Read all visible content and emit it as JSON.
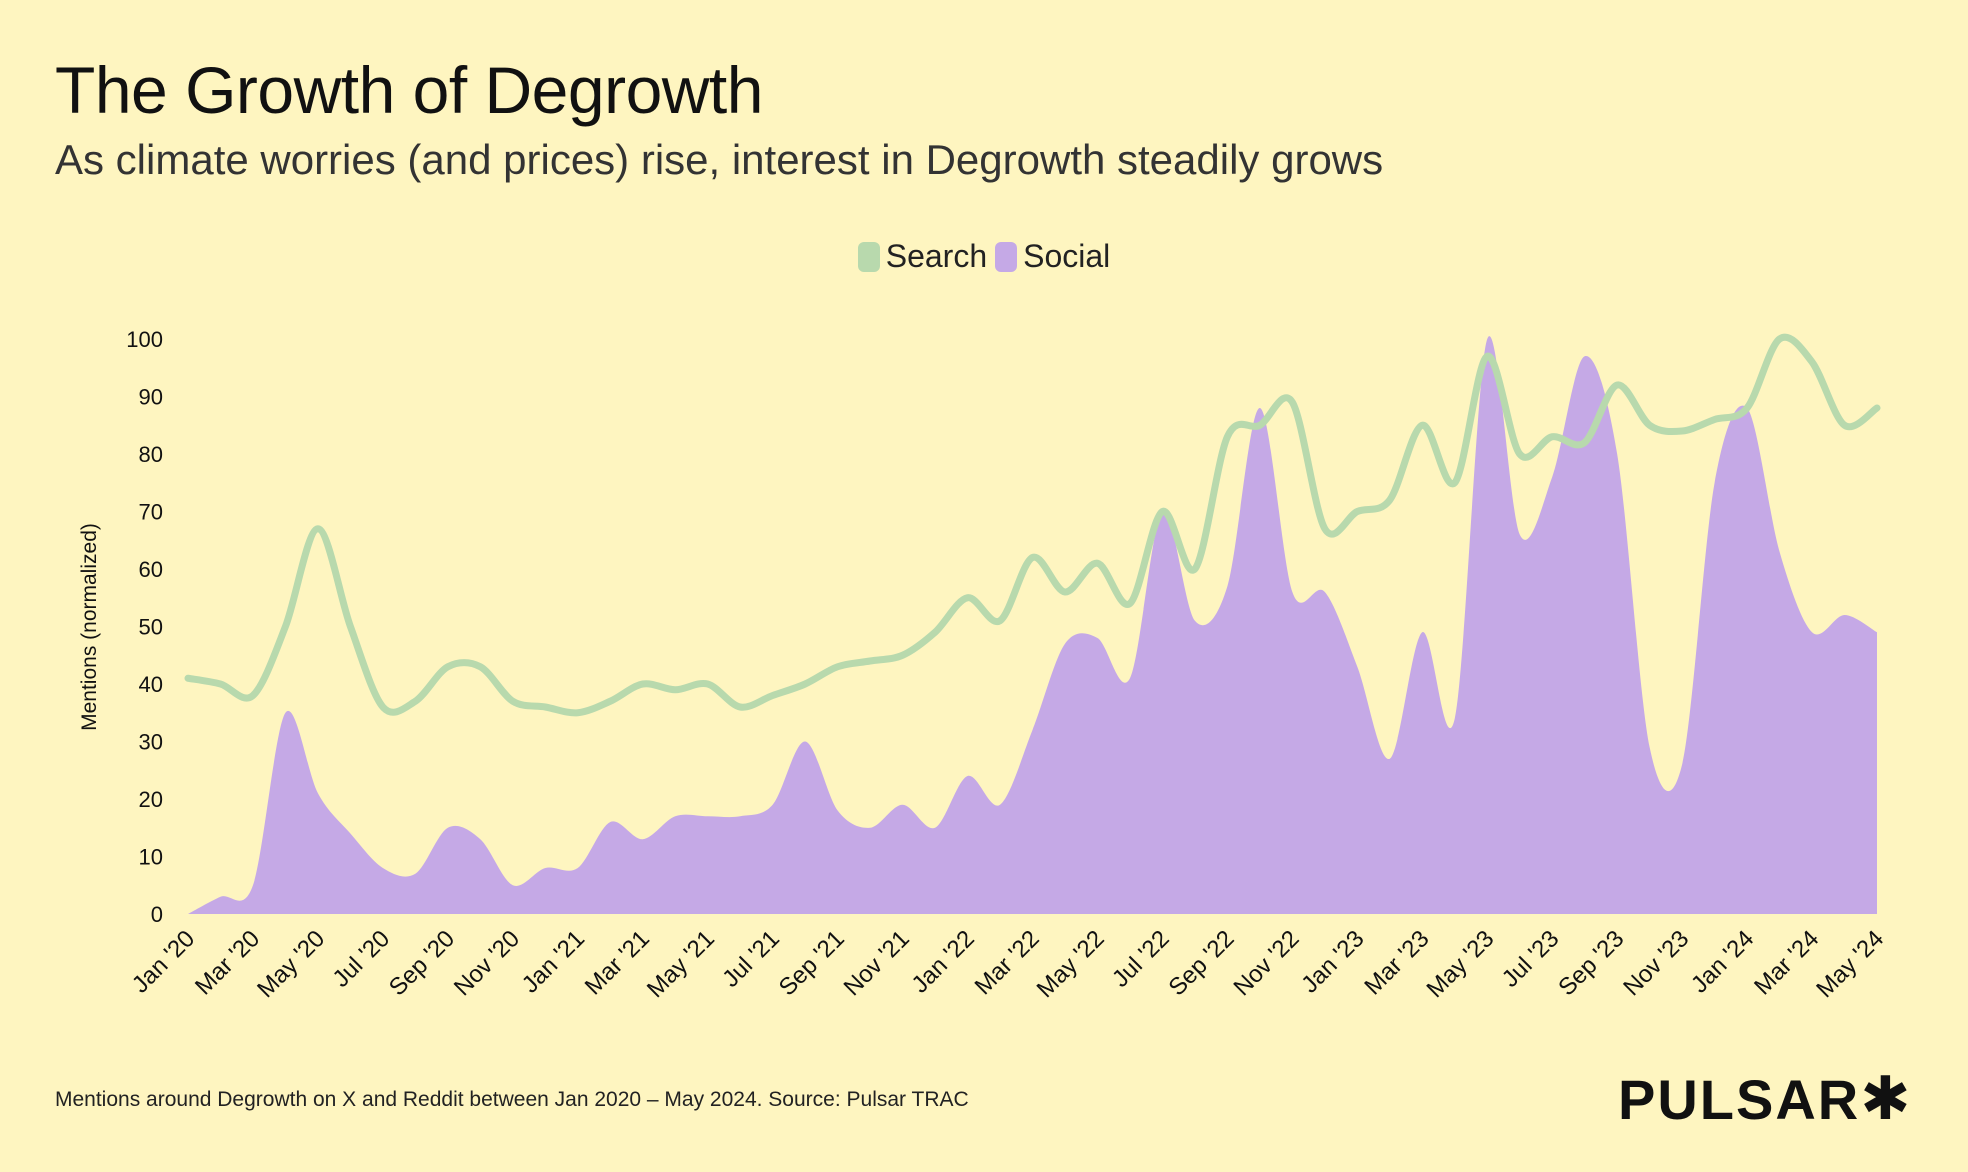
{
  "title": "The Growth of Degrowth",
  "subtitle": "As climate worries (and prices) rise, interest in Degrowth steadily grows",
  "footer": "Mentions around Degrowth on X and Reddit between Jan 2020 – May 2024. Source: Pulsar TRAC",
  "logo": "PULSAR✱",
  "chart_data": {
    "type": "area+line",
    "ylabel": "Mentions (normalized)",
    "ylim": [
      0,
      100
    ],
    "yticks": [
      0,
      10,
      20,
      30,
      40,
      50,
      60,
      70,
      80,
      90,
      100
    ],
    "legend_placement": "top-center",
    "grid": false,
    "xtick_labels": [
      "Jan '20",
      "Mar '20",
      "May '20",
      "Jul '20",
      "Sep '20",
      "Nov '20",
      "Jan '21",
      "Mar '21",
      "May '21",
      "Jul '21",
      "Sep '21",
      "Nov '21",
      "Jan '22",
      "Mar '22",
      "May '22",
      "Jul '22",
      "Sep '22",
      "Nov '22",
      "Jan '23",
      "Mar '23",
      "May '23",
      "Jul '23",
      "Sep '23",
      "Nov '23",
      "Jan '24",
      "Mar '24",
      "May '24"
    ],
    "x": [
      "2020-01",
      "2020-02",
      "2020-03",
      "2020-04",
      "2020-05",
      "2020-06",
      "2020-07",
      "2020-08",
      "2020-09",
      "2020-10",
      "2020-11",
      "2020-12",
      "2021-01",
      "2021-02",
      "2021-03",
      "2021-04",
      "2021-05",
      "2021-06",
      "2021-07",
      "2021-08",
      "2021-09",
      "2021-10",
      "2021-11",
      "2021-12",
      "2022-01",
      "2022-02",
      "2022-03",
      "2022-04",
      "2022-05",
      "2022-06",
      "2022-07",
      "2022-08",
      "2022-09",
      "2022-10",
      "2022-11",
      "2022-12",
      "2023-01",
      "2023-02",
      "2023-03",
      "2023-04",
      "2023-05",
      "2023-06",
      "2023-07",
      "2023-08",
      "2023-09",
      "2023-10",
      "2023-11",
      "2023-12",
      "2024-01",
      "2024-02",
      "2024-03",
      "2024-04",
      "2024-05"
    ],
    "series": [
      {
        "name": "Search",
        "kind": "line",
        "color": "#b8d9ad",
        "values": [
          41,
          40,
          38,
          50,
          67,
          50,
          36,
          37,
          43,
          43,
          37,
          36,
          35,
          37,
          40,
          39,
          40,
          36,
          38,
          40,
          43,
          44,
          45,
          49,
          55,
          51,
          62,
          56,
          61,
          54,
          70,
          60,
          83,
          85,
          89,
          67,
          70,
          72,
          85,
          75,
          97,
          80,
          83,
          82,
          92,
          85,
          84,
          86,
          88,
          100,
          96,
          85,
          88
        ]
      },
      {
        "name": "Social",
        "kind": "area",
        "color": "#c5a9e6",
        "values": [
          0,
          3,
          5,
          35,
          21,
          14,
          8,
          7,
          15,
          13,
          5,
          8,
          8,
          16,
          13,
          17,
          17,
          17,
          19,
          30,
          18,
          15,
          19,
          15,
          24,
          19,
          32,
          47,
          48,
          41,
          70,
          51,
          57,
          88,
          56,
          56,
          43,
          27,
          49,
          34,
          100,
          66,
          76,
          97,
          80,
          29,
          26,
          75,
          88,
          63,
          49,
          52,
          49
        ]
      }
    ]
  }
}
